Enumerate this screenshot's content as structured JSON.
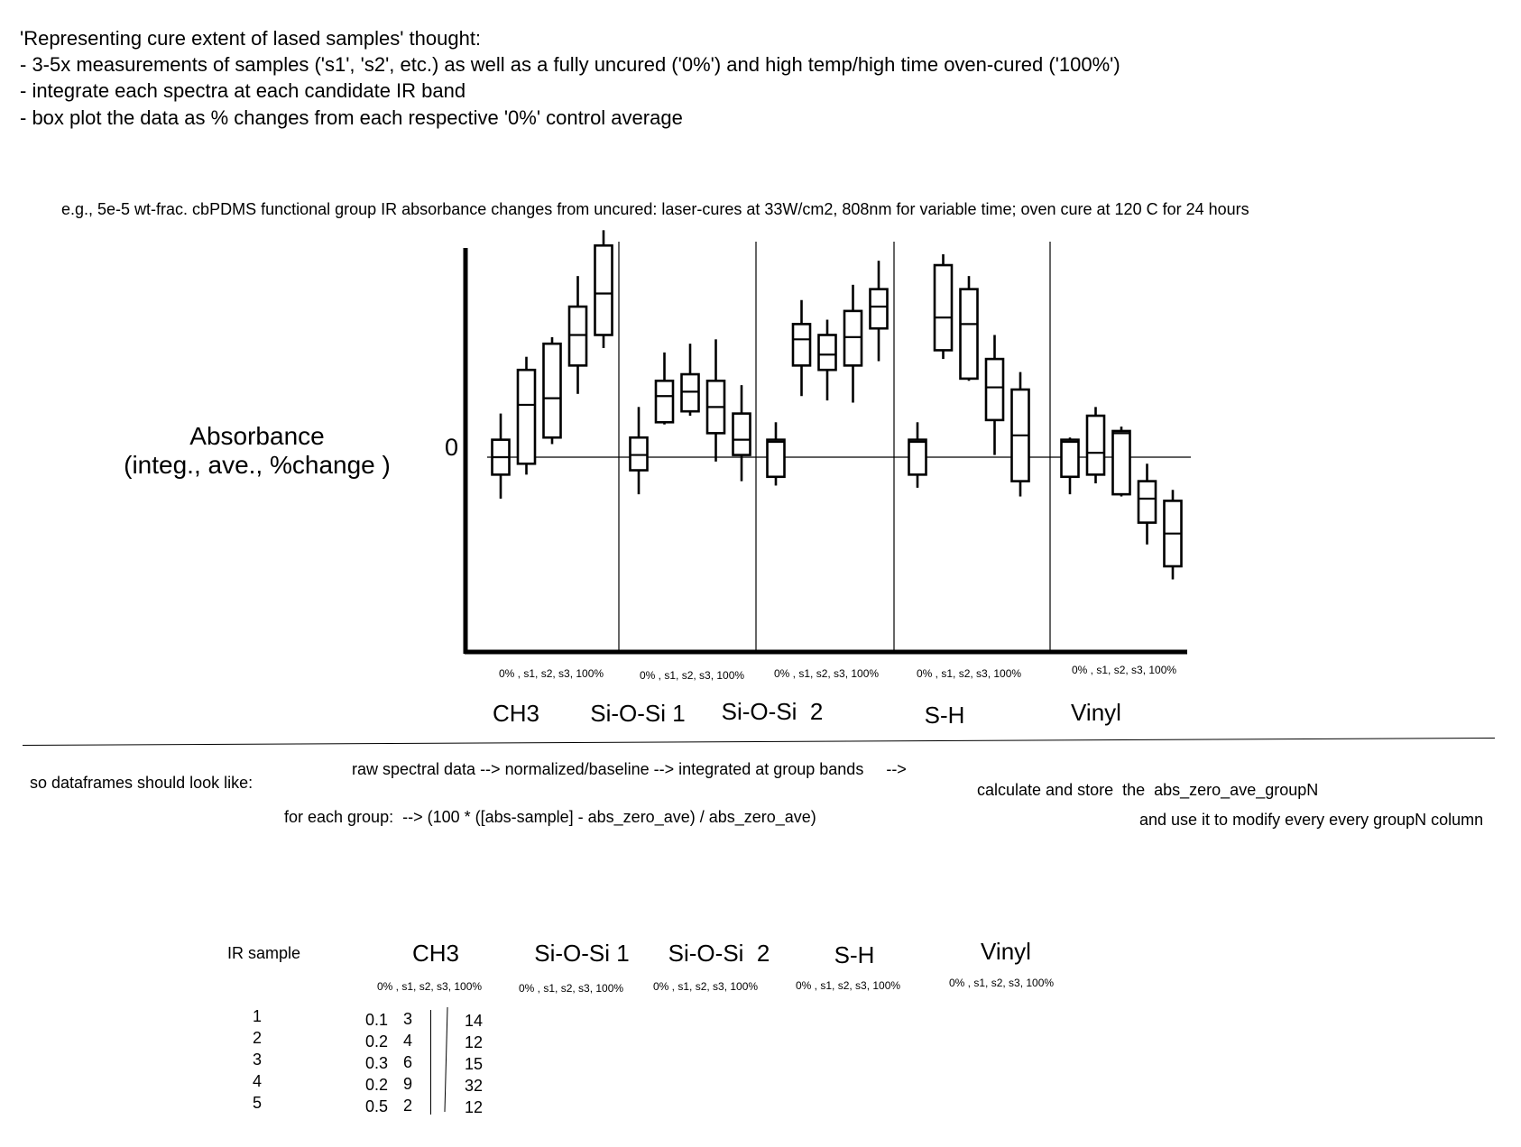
{
  "notes": {
    "heading": "'Representing cure extent of lased samples' thought:",
    "items": [
      "- 3-5x measurements of samples ('s1', 's2', etc.) as well as a fully uncured ('0%') and high temp/high time oven-cured ('100%')",
      "- integrate each spectra at each candidate IR band",
      "- box plot the data as % changes from each respective '0%' control average"
    ]
  },
  "chart_data": {
    "type": "box",
    "title": "e.g., 5e-5 wt-frac. cbPDMS functional group IR absorbance changes from uncured: laser-cures at 33W/cm2, 808nm for variable time; oven cure at 120 C for 24 hours",
    "ylabel_line1": "Absorbance",
    "ylabel_line2": "(integ., ave., %change )",
    "zero_label": "0",
    "ylim": [
      -100,
      100
    ],
    "groups": [
      {
        "name": "CH3",
        "sublabel": "0% , s1, s2, s3, 100%",
        "boxes": [
          {
            "whislo": -19,
            "q1": -8,
            "med": 0,
            "q3": 8,
            "whishi": 20
          },
          {
            "whislo": -8,
            "q1": -3,
            "med": 24,
            "q3": 40,
            "whishi": 46
          },
          {
            "whislo": 6,
            "q1": 9,
            "med": 27,
            "q3": 52,
            "whishi": 55
          },
          {
            "whislo": 29,
            "q1": 42,
            "med": 56,
            "q3": 69,
            "whishi": 83
          },
          {
            "whislo": 50,
            "q1": 56,
            "med": 75,
            "q3": 97,
            "whishi": 104
          }
        ]
      },
      {
        "name": "Si-O-Si 1",
        "sublabel": "0% , s1, s2, s3, 100%",
        "boxes": [
          {
            "whislo": -17,
            "q1": -6,
            "med": 1,
            "q3": 9,
            "whishi": 23
          },
          {
            "whislo": 15,
            "q1": 16,
            "med": 28,
            "q3": 35,
            "whishi": 48
          },
          {
            "whislo": 19,
            "q1": 21,
            "med": 30,
            "q3": 38,
            "whishi": 52
          },
          {
            "whislo": -2,
            "q1": 11,
            "med": 23,
            "q3": 35,
            "whishi": 54
          },
          {
            "whislo": -11,
            "q1": 1,
            "med": 8,
            "q3": 20,
            "whishi": 33
          }
        ]
      },
      {
        "name": "Si-O-Si  2",
        "sublabel": "0% , s1, s2, s3, 100%",
        "boxes": [
          {
            "whislo": -13,
            "q1": -9,
            "med": 7,
            "q3": 8,
            "whishi": 16
          },
          {
            "whislo": 28,
            "q1": 42,
            "med": 54,
            "q3": 61,
            "whishi": 72
          },
          {
            "whislo": 26,
            "q1": 40,
            "med": 47,
            "q3": 56,
            "whishi": 63
          },
          {
            "whislo": 25,
            "q1": 42,
            "med": 55,
            "q3": 67,
            "whishi": 79
          },
          {
            "whislo": 44,
            "q1": 59,
            "med": 69,
            "q3": 77,
            "whishi": 90
          }
        ]
      },
      {
        "name": "S-H",
        "sublabel": "0% , s1, s2, s3, 100%",
        "boxes": [
          {
            "whislo": -14,
            "q1": -8,
            "med": 7,
            "q3": 8,
            "whishi": 16
          },
          {
            "whislo": 45,
            "q1": 49,
            "med": 64,
            "q3": 88,
            "whishi": 93
          },
          {
            "whislo": 35,
            "q1": 36,
            "med": 61,
            "q3": 77,
            "whishi": 83
          },
          {
            "whislo": 1,
            "q1": 17,
            "med": 32,
            "q3": 45,
            "whishi": 56
          },
          {
            "whislo": -18,
            "q1": -11,
            "med": 10,
            "q3": 31,
            "whishi": 39
          }
        ]
      },
      {
        "name": "Vinyl",
        "sublabel": "0% , s1, s2, s3, 100%",
        "boxes": [
          {
            "whislo": -17,
            "q1": -9,
            "med": 7,
            "q3": 8,
            "whishi": 9
          },
          {
            "whislo": -12,
            "q1": -8,
            "med": 2,
            "q3": 19,
            "whishi": 23
          },
          {
            "whislo": -18,
            "q1": -17,
            "med": 11,
            "q3": 12,
            "whishi": 14
          },
          {
            "whislo": -40,
            "q1": -30,
            "med": -19,
            "q3": -11,
            "whishi": -3
          },
          {
            "whislo": -56,
            "q1": -50,
            "med": -35,
            "q3": -20,
            "whishi": -15
          }
        ]
      }
    ]
  },
  "workflow": {
    "pipeline": "raw spectral data --> normalized/baseline --> integrated at group bands     -->",
    "dataframes": "so dataframes should look like:",
    "formula": "for each group:  --> (100 * ([abs-sample] - abs_zero_ave) / abs_zero_ave)",
    "calc": "calculate and store  the  abs_zero_ave_groupN",
    "modify": "and use it to modify every every groupN column"
  },
  "table": {
    "row_header": "IR sample",
    "groups": [
      "CH3",
      "Si-O-Si 1",
      "Si-O-Si  2",
      "S-H",
      "Vinyl"
    ],
    "subheader": "0% , s1, s2, s3, 100%",
    "rows": [
      "1",
      "2",
      "3",
      "4",
      "5"
    ],
    "col_zero": [
      "0.1",
      "0.2",
      "0.3",
      "0.2",
      "0.5"
    ],
    "col_s1": [
      "3",
      "4",
      "6",
      "9",
      "2"
    ],
    "col_100": [
      "14",
      "12",
      "15",
      "32",
      "12"
    ]
  }
}
